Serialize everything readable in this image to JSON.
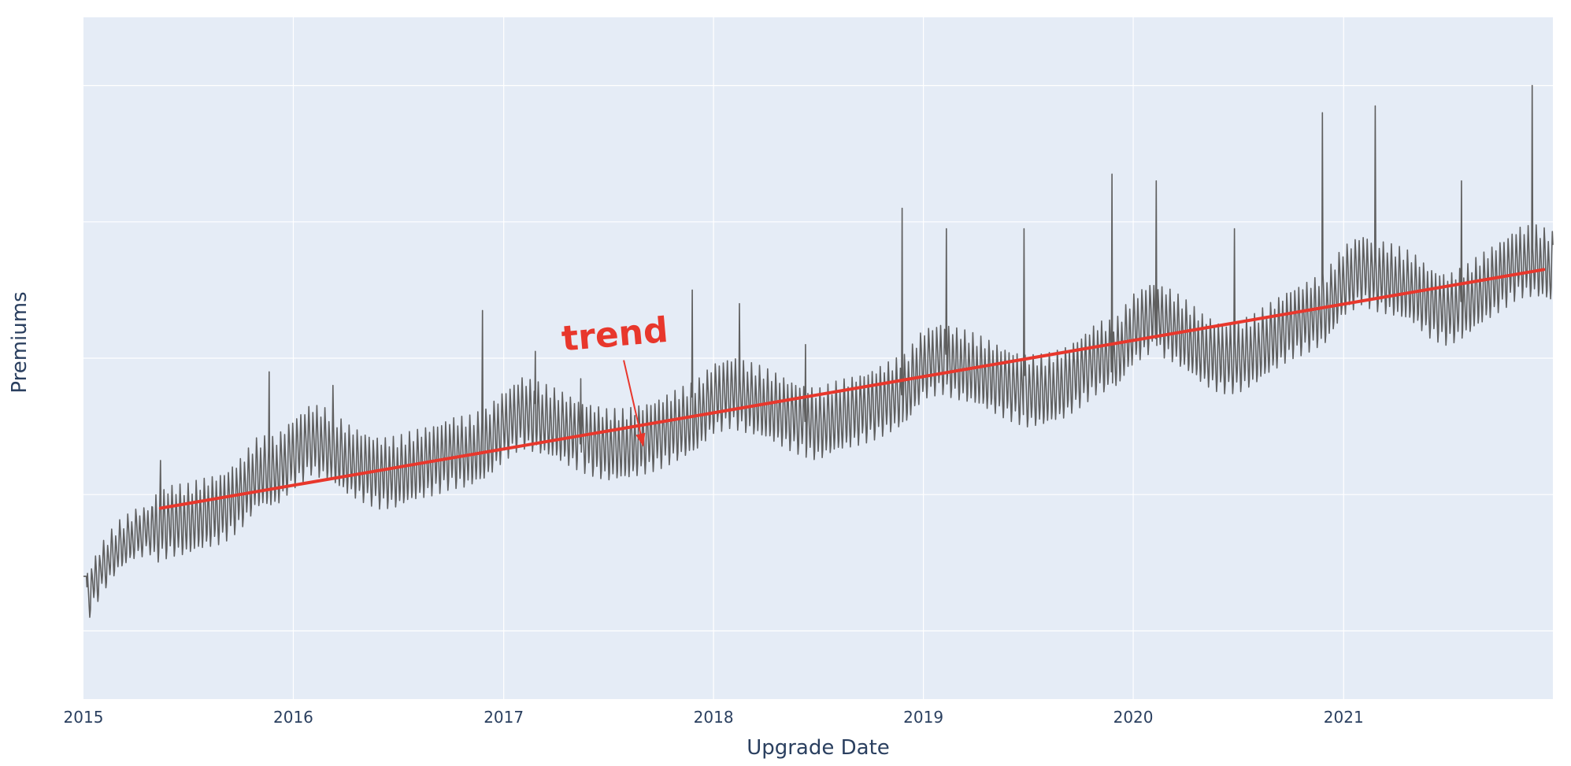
{
  "chart_data": {
    "type": "line",
    "xlabel": "Upgrade Date",
    "ylabel": "Premiums",
    "x_tick_labels": [
      "2015",
      "2016",
      "2017",
      "2018",
      "2019",
      "2020",
      "2021"
    ],
    "xlim": [
      "2015-01-01",
      "2021-12-31"
    ],
    "ylim": [
      0,
      100
    ],
    "y_tick_labels_shown": false,
    "grid": true,
    "background_color": "#e5ecf6",
    "series": [
      {
        "color": "#5f5f5f",
        "sampling": "monthly-approximate",
        "values": [
          [
            "2015-01-01",
            14
          ],
          [
            "2015-02-01",
            19
          ],
          [
            "2015-03-01",
            22
          ],
          [
            "2015-04-01",
            24
          ],
          [
            "2015-05-01",
            25
          ],
          [
            "2015-06-01",
            26
          ],
          [
            "2015-07-01",
            26
          ],
          [
            "2015-08-01",
            27
          ],
          [
            "2015-09-01",
            28
          ],
          [
            "2015-10-01",
            30
          ],
          [
            "2015-11-01",
            33
          ],
          [
            "2015-12-01",
            33
          ],
          [
            "2016-01-01",
            36
          ],
          [
            "2016-02-01",
            38
          ],
          [
            "2016-03-01",
            37
          ],
          [
            "2016-04-01",
            35
          ],
          [
            "2016-05-01",
            34
          ],
          [
            "2016-06-01",
            33
          ],
          [
            "2016-07-01",
            33
          ],
          [
            "2016-08-01",
            34
          ],
          [
            "2016-09-01",
            35
          ],
          [
            "2016-10-01",
            36
          ],
          [
            "2016-11-01",
            36
          ],
          [
            "2016-12-01",
            37
          ],
          [
            "2017-01-01",
            40
          ],
          [
            "2017-02-01",
            42
          ],
          [
            "2017-03-01",
            41
          ],
          [
            "2017-04-01",
            40
          ],
          [
            "2017-05-01",
            39
          ],
          [
            "2017-06-01",
            38
          ],
          [
            "2017-07-01",
            37
          ],
          [
            "2017-08-01",
            37
          ],
          [
            "2017-09-01",
            38
          ],
          [
            "2017-10-01",
            39
          ],
          [
            "2017-11-01",
            40
          ],
          [
            "2017-12-01",
            41
          ],
          [
            "2018-01-01",
            44
          ],
          [
            "2018-02-01",
            45
          ],
          [
            "2018-03-01",
            44
          ],
          [
            "2018-04-01",
            43
          ],
          [
            "2018-05-01",
            42
          ],
          [
            "2018-06-01",
            41
          ],
          [
            "2018-07-01",
            40
          ],
          [
            "2018-08-01",
            41
          ],
          [
            "2018-09-01",
            42
          ],
          [
            "2018-10-01",
            43
          ],
          [
            "2018-11-01",
            44
          ],
          [
            "2018-12-01",
            45
          ],
          [
            "2019-01-01",
            49
          ],
          [
            "2019-02-01",
            50
          ],
          [
            "2019-03-01",
            49
          ],
          [
            "2019-04-01",
            48
          ],
          [
            "2019-05-01",
            47
          ],
          [
            "2019-06-01",
            46
          ],
          [
            "2019-07-01",
            45
          ],
          [
            "2019-08-01",
            45
          ],
          [
            "2019-09-01",
            46
          ],
          [
            "2019-10-01",
            48
          ],
          [
            "2019-11-01",
            50
          ],
          [
            "2019-12-01",
            50
          ],
          [
            "2020-01-01",
            54
          ],
          [
            "2020-02-01",
            56
          ],
          [
            "2020-03-01",
            55
          ],
          [
            "2020-04-01",
            53
          ],
          [
            "2020-05-01",
            51
          ],
          [
            "2020-06-01",
            50
          ],
          [
            "2020-07-01",
            50
          ],
          [
            "2020-08-01",
            51
          ],
          [
            "2020-09-01",
            53
          ],
          [
            "2020-10-01",
            55
          ],
          [
            "2020-11-01",
            56
          ],
          [
            "2020-12-01",
            57
          ],
          [
            "2021-01-01",
            61
          ],
          [
            "2021-02-01",
            63
          ],
          [
            "2021-03-01",
            62
          ],
          [
            "2021-04-01",
            61
          ],
          [
            "2021-05-01",
            60
          ],
          [
            "2021-06-01",
            58
          ],
          [
            "2021-07-01",
            57
          ],
          [
            "2021-08-01",
            58
          ],
          [
            "2021-09-01",
            60
          ],
          [
            "2021-10-01",
            62
          ],
          [
            "2021-11-01",
            64
          ],
          [
            "2021-12-01",
            64
          ],
          [
            "2021-12-31",
            63
          ]
        ],
        "spikes": [
          [
            "2015-05-15",
            35
          ],
          [
            "2015-11-20",
            48
          ],
          [
            "2016-03-10",
            46
          ],
          [
            "2016-11-25",
            57
          ],
          [
            "2017-02-25",
            51
          ],
          [
            "2017-05-15",
            47
          ],
          [
            "2017-11-25",
            60
          ],
          [
            "2018-02-15",
            58
          ],
          [
            "2018-06-10",
            52
          ],
          [
            "2018-11-25",
            72
          ],
          [
            "2019-02-10",
            69
          ],
          [
            "2019-06-25",
            69
          ],
          [
            "2019-11-25",
            77
          ],
          [
            "2020-02-10",
            76
          ],
          [
            "2020-06-25",
            69
          ],
          [
            "2020-11-25",
            86
          ],
          [
            "2021-02-25",
            87
          ],
          [
            "2021-07-25",
            76
          ],
          [
            "2021-11-25",
            90
          ]
        ]
      },
      {
        "name": "trend",
        "color": "#e8372c",
        "values": [
          [
            "2015-05-15",
            28
          ],
          [
            "2021-12-15",
            63
          ]
        ]
      }
    ],
    "annotations": [
      {
        "text": "trend",
        "color": "#e8372c",
        "points_to": [
          "2017-09-01",
          37
        ]
      }
    ]
  }
}
